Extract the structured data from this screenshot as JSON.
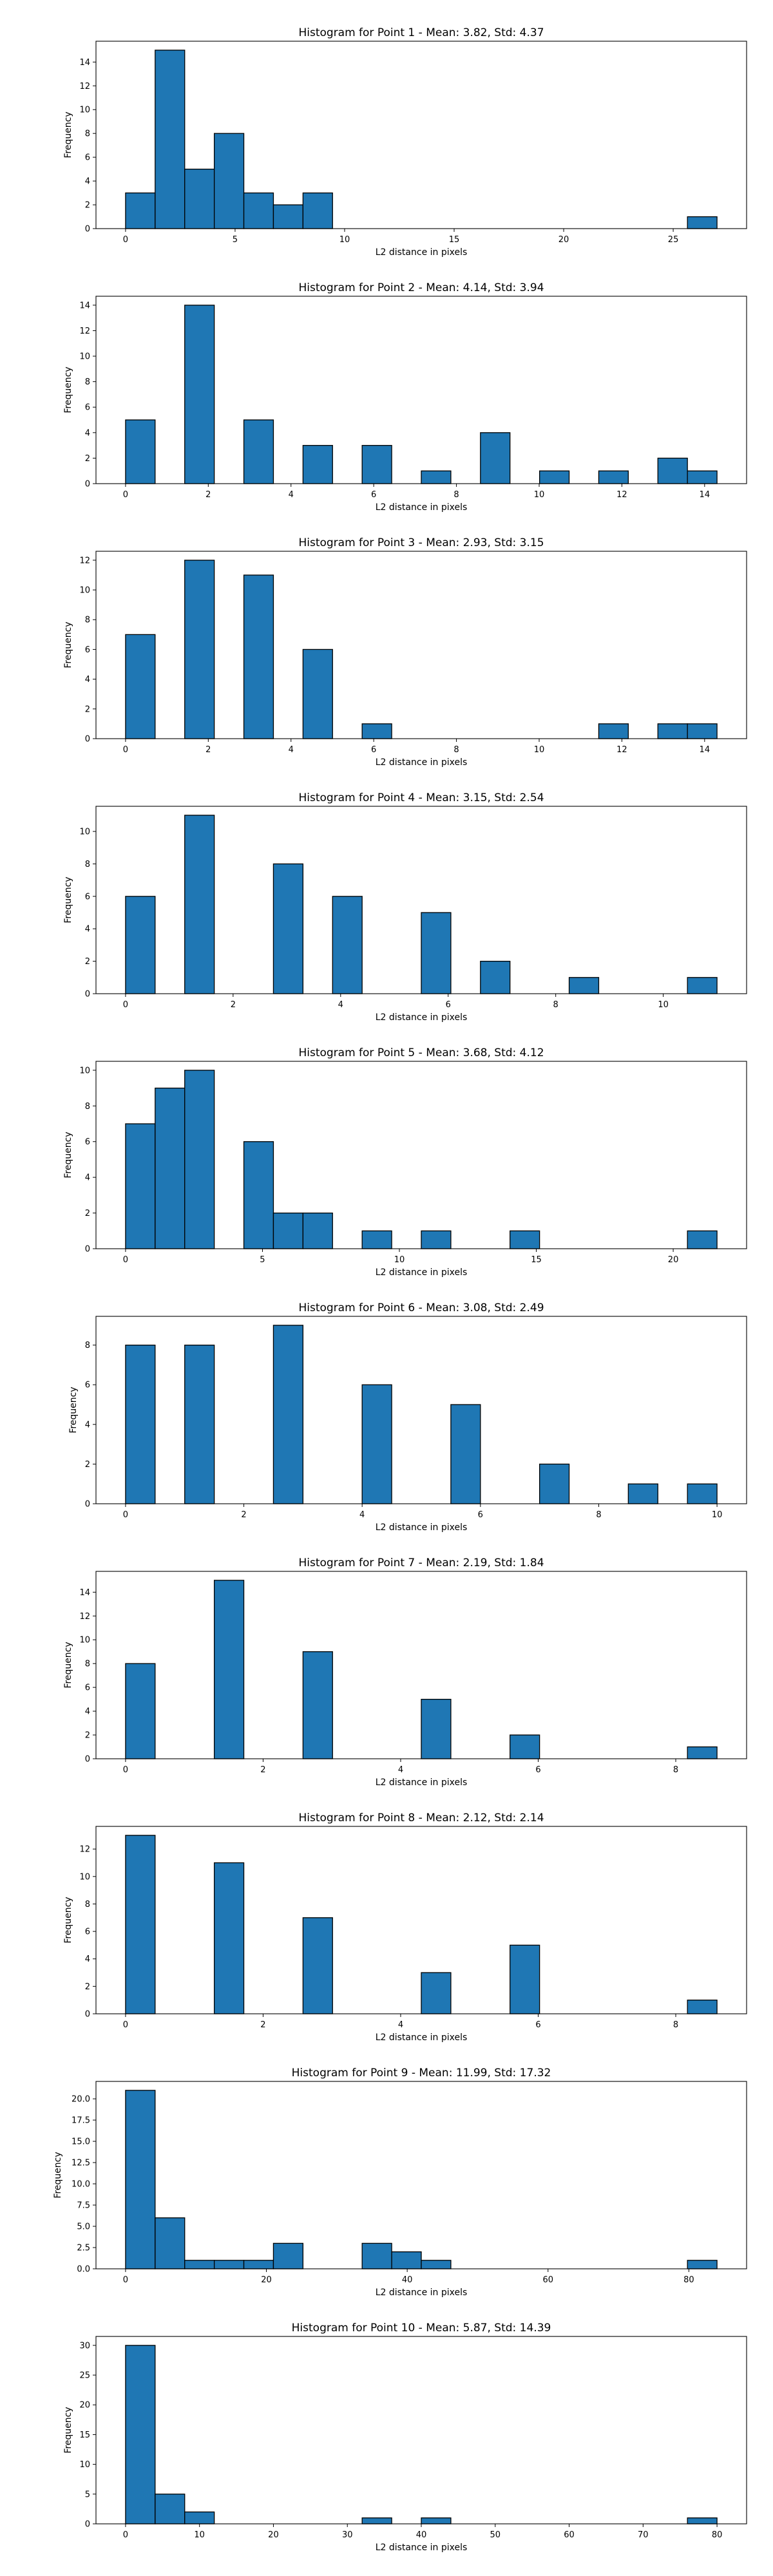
{
  "chart_data": [
    {
      "type": "bar",
      "title": "Histogram for Point 1 - Mean: 3.82, Std: 4.37",
      "xlabel": "L2 distance in pixels",
      "ylabel": "Frequency",
      "xlim": [
        -1.35,
        28.35
      ],
      "ylim": [
        0,
        15.75
      ],
      "xticks": [
        0,
        5,
        10,
        15,
        20,
        25
      ],
      "xtick_labels": [
        "0",
        "5",
        "10",
        "15",
        "20",
        "25"
      ],
      "yticks": [
        0,
        2,
        4,
        6,
        8,
        10,
        12,
        14
      ],
      "ytick_labels": [
        "0",
        "2",
        "4",
        "6",
        "8",
        "10",
        "12",
        "14"
      ],
      "bins": [
        {
          "x0": 0.0,
          "x1": 1.35,
          "count": 3
        },
        {
          "x0": 1.35,
          "x1": 2.7,
          "count": 15
        },
        {
          "x0": 2.7,
          "x1": 4.05,
          "count": 5
        },
        {
          "x0": 4.05,
          "x1": 5.4,
          "count": 8
        },
        {
          "x0": 5.4,
          "x1": 6.75,
          "count": 3
        },
        {
          "x0": 6.75,
          "x1": 8.1,
          "count": 2
        },
        {
          "x0": 8.1,
          "x1": 9.45,
          "count": 3
        },
        {
          "x0": 25.65,
          "x1": 27.0,
          "count": 1
        }
      ]
    },
    {
      "type": "bar",
      "title": "Histogram for Point 2 - Mean: 4.14, Std: 3.94",
      "xlabel": "L2 distance in pixels",
      "ylabel": "Frequency",
      "xlim": [
        -0.715,
        15.015
      ],
      "ylim": [
        0,
        14.7
      ],
      "xticks": [
        0,
        2,
        4,
        6,
        8,
        10,
        12,
        14
      ],
      "xtick_labels": [
        "0",
        "2",
        "4",
        "6",
        "8",
        "10",
        "12",
        "14"
      ],
      "yticks": [
        0,
        2,
        4,
        6,
        8,
        10,
        12,
        14
      ],
      "ytick_labels": [
        "0",
        "2",
        "4",
        "6",
        "8",
        "10",
        "12",
        "14"
      ],
      "bins": [
        {
          "x0": 0.0,
          "x1": 0.715,
          "count": 5
        },
        {
          "x0": 1.43,
          "x1": 2.145,
          "count": 14
        },
        {
          "x0": 2.86,
          "x1": 3.575,
          "count": 5
        },
        {
          "x0": 4.29,
          "x1": 5.005,
          "count": 3
        },
        {
          "x0": 5.72,
          "x1": 6.435,
          "count": 3
        },
        {
          "x0": 7.15,
          "x1": 7.865,
          "count": 1
        },
        {
          "x0": 8.58,
          "x1": 9.295,
          "count": 4
        },
        {
          "x0": 10.01,
          "x1": 10.725,
          "count": 1
        },
        {
          "x0": 11.44,
          "x1": 12.155,
          "count": 1
        },
        {
          "x0": 12.87,
          "x1": 13.585,
          "count": 2
        },
        {
          "x0": 13.585,
          "x1": 14.3,
          "count": 1
        }
      ]
    },
    {
      "type": "bar",
      "title": "Histogram for Point 3 - Mean: 2.93, Std: 3.15",
      "xlabel": "L2 distance in pixels",
      "ylabel": "Frequency",
      "xlim": [
        -0.715,
        15.015
      ],
      "ylim": [
        0,
        12.6
      ],
      "xticks": [
        0,
        2,
        4,
        6,
        8,
        10,
        12,
        14
      ],
      "xtick_labels": [
        "0",
        "2",
        "4",
        "6",
        "8",
        "10",
        "12",
        "14"
      ],
      "yticks": [
        0,
        2,
        4,
        6,
        8,
        10,
        12
      ],
      "ytick_labels": [
        "0",
        "2",
        "4",
        "6",
        "8",
        "10",
        "12"
      ],
      "bins": [
        {
          "x0": 0.0,
          "x1": 0.715,
          "count": 7
        },
        {
          "x0": 1.43,
          "x1": 2.145,
          "count": 12
        },
        {
          "x0": 2.86,
          "x1": 3.575,
          "count": 11
        },
        {
          "x0": 4.29,
          "x1": 5.005,
          "count": 6
        },
        {
          "x0": 5.72,
          "x1": 6.435,
          "count": 1
        },
        {
          "x0": 11.44,
          "x1": 12.155,
          "count": 1
        },
        {
          "x0": 12.87,
          "x1": 13.585,
          "count": 1
        },
        {
          "x0": 13.585,
          "x1": 14.3,
          "count": 1
        }
      ]
    },
    {
      "type": "bar",
      "title": "Histogram for Point 4 - Mean: 3.15, Std: 2.54",
      "xlabel": "L2 distance in pixels",
      "ylabel": "Frequency",
      "xlim": [
        -0.55,
        11.55
      ],
      "ylim": [
        0,
        11.55
      ],
      "xticks": [
        0,
        2,
        4,
        6,
        8,
        10
      ],
      "xtick_labels": [
        "0",
        "2",
        "4",
        "6",
        "8",
        "10"
      ],
      "yticks": [
        0,
        2,
        4,
        6,
        8,
        10
      ],
      "ytick_labels": [
        "0",
        "2",
        "4",
        "6",
        "8",
        "10"
      ],
      "bins": [
        {
          "x0": 0.0,
          "x1": 0.55,
          "count": 6
        },
        {
          "x0": 1.1,
          "x1": 1.65,
          "count": 11
        },
        {
          "x0": 2.75,
          "x1": 3.3,
          "count": 8
        },
        {
          "x0": 3.85,
          "x1": 4.4,
          "count": 6
        },
        {
          "x0": 5.5,
          "x1": 6.05,
          "count": 5
        },
        {
          "x0": 6.6,
          "x1": 7.15,
          "count": 2
        },
        {
          "x0": 8.25,
          "x1": 8.8,
          "count": 1
        },
        {
          "x0": 10.45,
          "x1": 11.0,
          "count": 1
        }
      ]
    },
    {
      "type": "bar",
      "title": "Histogram for Point 5 - Mean: 3.68, Std: 4.12",
      "xlabel": "L2 distance in pixels",
      "ylabel": "Frequency",
      "xlim": [
        -1.08,
        22.68
      ],
      "ylim": [
        0,
        10.5
      ],
      "xticks": [
        0,
        5,
        10,
        15,
        20
      ],
      "xtick_labels": [
        "0",
        "5",
        "10",
        "15",
        "20"
      ],
      "yticks": [
        0,
        2,
        4,
        6,
        8,
        10
      ],
      "ytick_labels": [
        "0",
        "2",
        "4",
        "6",
        "8",
        "10"
      ],
      "bins": [
        {
          "x0": 0.0,
          "x1": 1.08,
          "count": 7
        },
        {
          "x0": 1.08,
          "x1": 2.16,
          "count": 9
        },
        {
          "x0": 2.16,
          "x1": 3.24,
          "count": 10
        },
        {
          "x0": 4.32,
          "x1": 5.4,
          "count": 6
        },
        {
          "x0": 5.4,
          "x1": 6.48,
          "count": 2
        },
        {
          "x0": 6.48,
          "x1": 7.56,
          "count": 2
        },
        {
          "x0": 8.64,
          "x1": 9.72,
          "count": 1
        },
        {
          "x0": 10.8,
          "x1": 11.88,
          "count": 1
        },
        {
          "x0": 14.04,
          "x1": 15.12,
          "count": 1
        },
        {
          "x0": 20.52,
          "x1": 21.6,
          "count": 1
        }
      ]
    },
    {
      "type": "bar",
      "title": "Histogram for Point 6 - Mean: 3.08, Std: 2.49",
      "xlabel": "L2 distance in pixels",
      "ylabel": "Frequency",
      "xlim": [
        -0.5,
        10.5
      ],
      "ylim": [
        0,
        9.45
      ],
      "xticks": [
        0,
        2,
        4,
        6,
        8,
        10
      ],
      "xtick_labels": [
        "0",
        "2",
        "4",
        "6",
        "8",
        "10"
      ],
      "yticks": [
        0,
        2,
        4,
        6,
        8
      ],
      "ytick_labels": [
        "0",
        "2",
        "4",
        "6",
        "8"
      ],
      "bins": [
        {
          "x0": 0.0,
          "x1": 0.5,
          "count": 8
        },
        {
          "x0": 1.0,
          "x1": 1.5,
          "count": 8
        },
        {
          "x0": 2.5,
          "x1": 3.0,
          "count": 9
        },
        {
          "x0": 4.0,
          "x1": 4.5,
          "count": 6
        },
        {
          "x0": 5.5,
          "x1": 6.0,
          "count": 5
        },
        {
          "x0": 7.0,
          "x1": 7.5,
          "count": 2
        },
        {
          "x0": 8.5,
          "x1": 9.0,
          "count": 1
        },
        {
          "x0": 9.5,
          "x1": 10.0,
          "count": 1
        }
      ]
    },
    {
      "type": "bar",
      "title": "Histogram for Point 7 - Mean: 2.19, Std: 1.84",
      "xlabel": "L2 distance in pixels",
      "ylabel": "Frequency",
      "xlim": [
        -0.43,
        9.03
      ],
      "ylim": [
        0,
        15.75
      ],
      "xticks": [
        0,
        2,
        4,
        6,
        8
      ],
      "xtick_labels": [
        "0",
        "2",
        "4",
        "6",
        "8"
      ],
      "yticks": [
        0,
        2,
        4,
        6,
        8,
        10,
        12,
        14
      ],
      "ytick_labels": [
        "0",
        "2",
        "4",
        "6",
        "8",
        "10",
        "12",
        "14"
      ],
      "bins": [
        {
          "x0": 0.0,
          "x1": 0.43,
          "count": 8
        },
        {
          "x0": 1.29,
          "x1": 1.72,
          "count": 15
        },
        {
          "x0": 2.58,
          "x1": 3.01,
          "count": 9
        },
        {
          "x0": 4.3,
          "x1": 4.73,
          "count": 5
        },
        {
          "x0": 5.59,
          "x1": 6.02,
          "count": 2
        },
        {
          "x0": 8.17,
          "x1": 8.6,
          "count": 1
        }
      ]
    },
    {
      "type": "bar",
      "title": "Histogram for Point 8 - Mean: 2.12, Std: 2.14",
      "xlabel": "L2 distance in pixels",
      "ylabel": "Frequency",
      "xlim": [
        -0.43,
        9.03
      ],
      "ylim": [
        0,
        13.65
      ],
      "xticks": [
        0,
        2,
        4,
        6,
        8
      ],
      "xtick_labels": [
        "0",
        "2",
        "4",
        "6",
        "8"
      ],
      "yticks": [
        0,
        2,
        4,
        6,
        8,
        10,
        12
      ],
      "ytick_labels": [
        "0",
        "2",
        "4",
        "6",
        "8",
        "10",
        "12"
      ],
      "bins": [
        {
          "x0": 0.0,
          "x1": 0.43,
          "count": 13
        },
        {
          "x0": 1.29,
          "x1": 1.72,
          "count": 11
        },
        {
          "x0": 2.58,
          "x1": 3.01,
          "count": 7
        },
        {
          "x0": 4.3,
          "x1": 4.73,
          "count": 3
        },
        {
          "x0": 5.59,
          "x1": 6.02,
          "count": 5
        },
        {
          "x0": 8.17,
          "x1": 8.6,
          "count": 1
        }
      ]
    },
    {
      "type": "bar",
      "title": "Histogram for Point 9 - Mean: 11.99, Std: 17.32",
      "xlabel": "L2 distance in pixels",
      "ylabel": "Frequency",
      "xlim": [
        -4.2,
        88.2
      ],
      "ylim": [
        0,
        22.05
      ],
      "xticks": [
        0,
        20,
        40,
        60,
        80
      ],
      "xtick_labels": [
        "0",
        "20",
        "40",
        "60",
        "80"
      ],
      "yticks": [
        0,
        2.5,
        5,
        7.5,
        10,
        12.5,
        15,
        17.5,
        20
      ],
      "ytick_labels": [
        "0.0",
        "2.5",
        "5.0",
        "7.5",
        "10.0",
        "12.5",
        "15.0",
        "17.5",
        "20.0"
      ],
      "bins": [
        {
          "x0": 0.0,
          "x1": 4.2,
          "count": 21
        },
        {
          "x0": 4.2,
          "x1": 8.4,
          "count": 6
        },
        {
          "x0": 8.4,
          "x1": 12.6,
          "count": 1
        },
        {
          "x0": 12.6,
          "x1": 16.8,
          "count": 1
        },
        {
          "x0": 16.8,
          "x1": 21.0,
          "count": 1
        },
        {
          "x0": 21.0,
          "x1": 25.2,
          "count": 3
        },
        {
          "x0": 33.6,
          "x1": 37.8,
          "count": 3
        },
        {
          "x0": 37.8,
          "x1": 42.0,
          "count": 2
        },
        {
          "x0": 42.0,
          "x1": 46.2,
          "count": 1
        },
        {
          "x0": 79.8,
          "x1": 84.0,
          "count": 1
        }
      ]
    },
    {
      "type": "bar",
      "title": "Histogram for Point 10 - Mean: 5.87, Std: 14.39",
      "xlabel": "L2 distance in pixels",
      "ylabel": "Frequency",
      "xlim": [
        -4.0,
        84.0
      ],
      "ylim": [
        0,
        31.5
      ],
      "xticks": [
        0,
        10,
        20,
        30,
        40,
        50,
        60,
        70,
        80
      ],
      "xtick_labels": [
        "0",
        "10",
        "20",
        "30",
        "40",
        "50",
        "60",
        "70",
        "80"
      ],
      "yticks": [
        0,
        5,
        10,
        15,
        20,
        25,
        30
      ],
      "ytick_labels": [
        "0",
        "5",
        "10",
        "15",
        "20",
        "25",
        "30"
      ],
      "bins": [
        {
          "x0": 0.0,
          "x1": 4.0,
          "count": 30
        },
        {
          "x0": 4.0,
          "x1": 8.0,
          "count": 5
        },
        {
          "x0": 8.0,
          "x1": 12.0,
          "count": 2
        },
        {
          "x0": 32.0,
          "x1": 36.0,
          "count": 1
        },
        {
          "x0": 40.0,
          "x1": 44.0,
          "count": 1
        },
        {
          "x0": 76.0,
          "x1": 80.0,
          "count": 1
        }
      ]
    }
  ],
  "colors": {
    "bar_fill": "#1f77b4",
    "bar_edge": "#000000",
    "axis": "#000000",
    "background": "#ffffff"
  }
}
